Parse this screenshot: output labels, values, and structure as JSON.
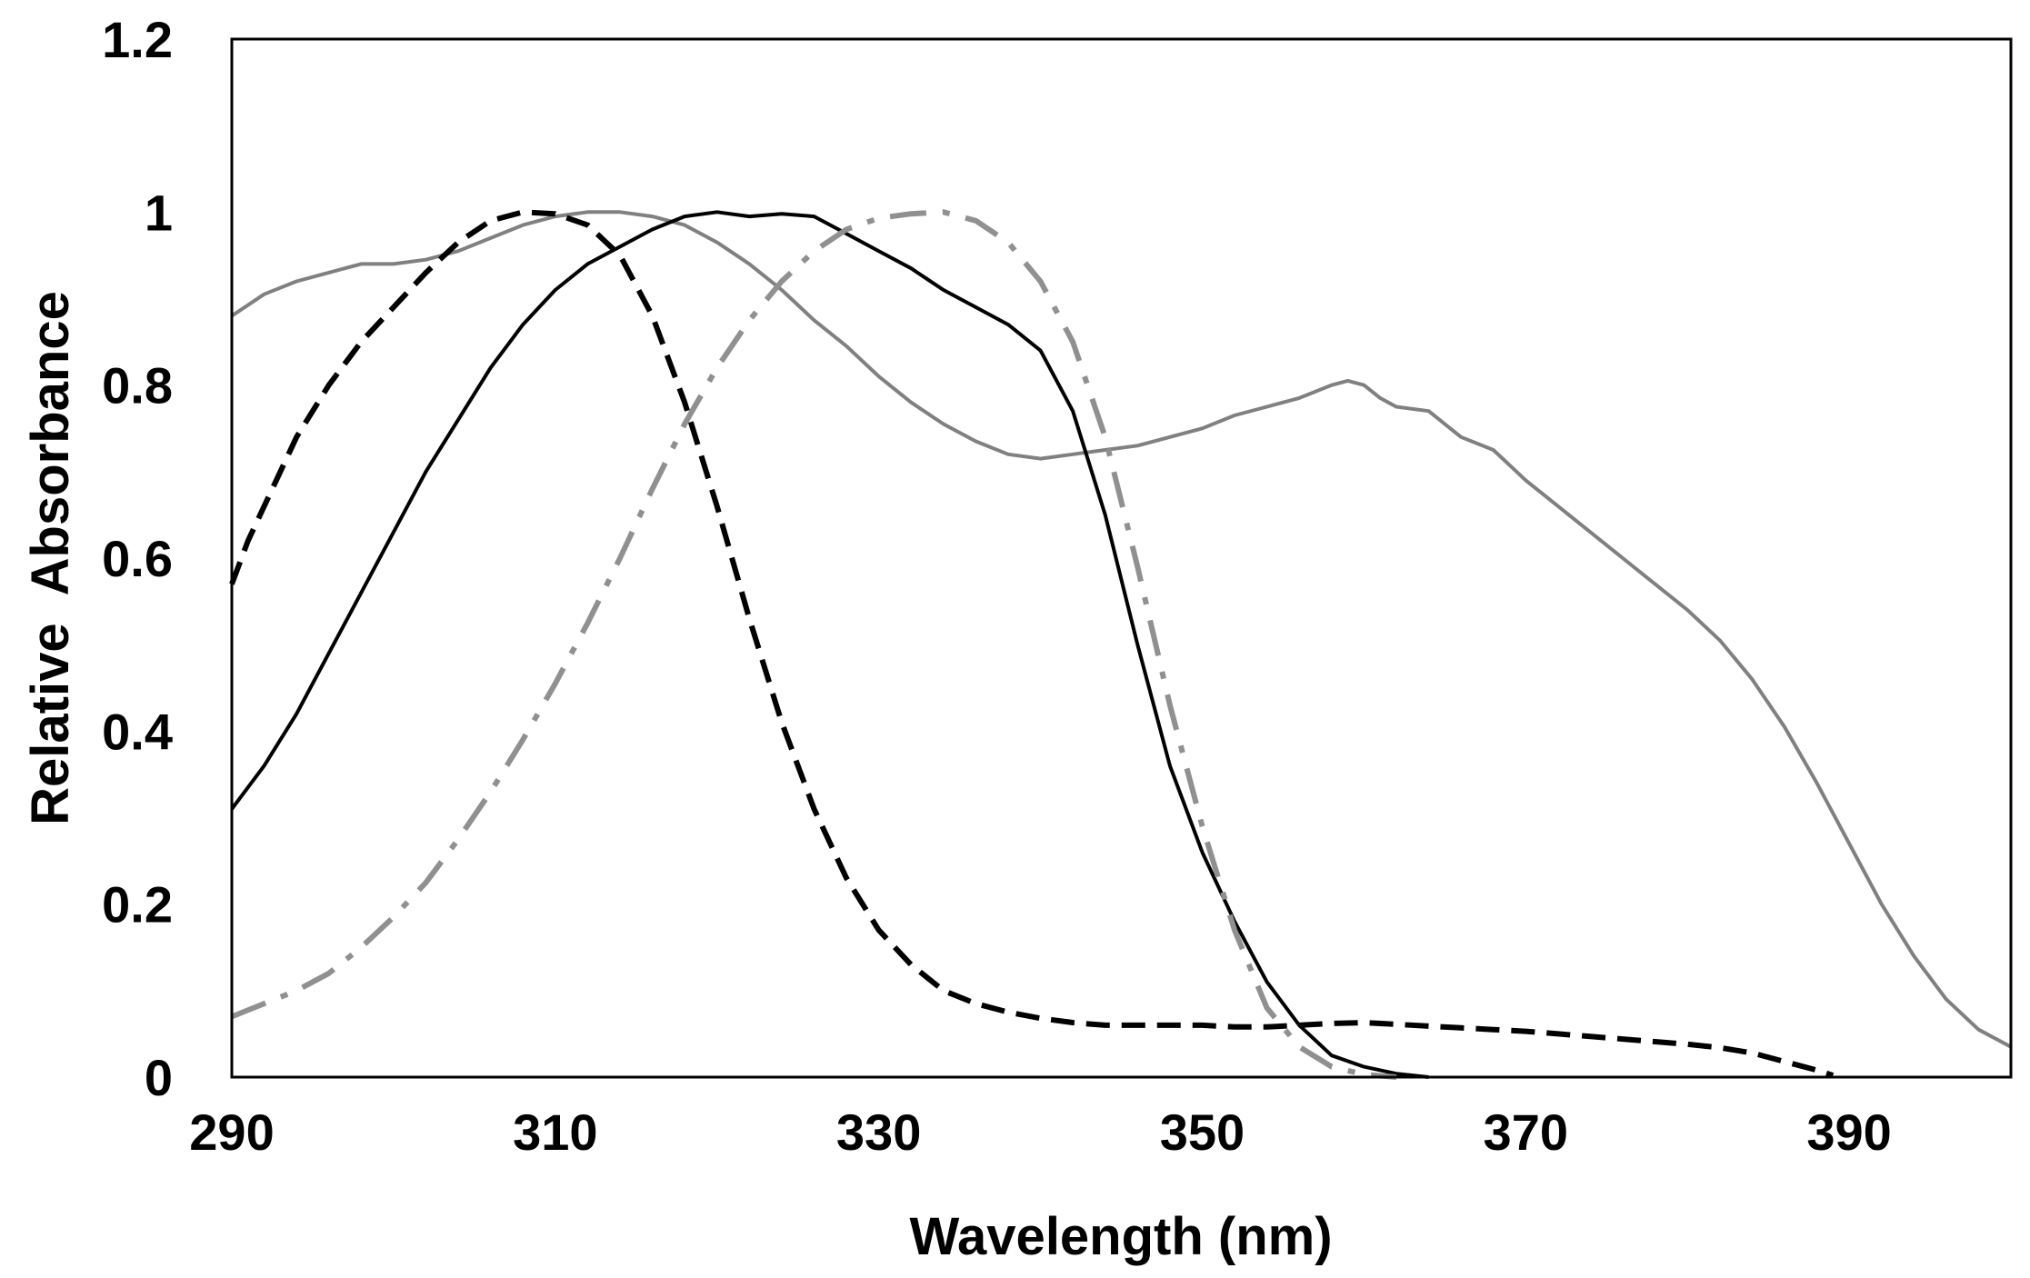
{
  "chart_data": {
    "type": "line",
    "title": "",
    "xlabel": "Wavelength (nm)",
    "ylabel": "Relative  Absorbance",
    "xlim": [
      290,
      400
    ],
    "ylim": [
      0,
      1.2
    ],
    "x_ticks": [
      {
        "value": 290,
        "label": "290"
      },
      {
        "value": 310,
        "label": "310"
      },
      {
        "value": 330,
        "label": "330"
      },
      {
        "value": 350,
        "label": "350"
      },
      {
        "value": 370,
        "label": "370"
      },
      {
        "value": 390,
        "label": "390"
      }
    ],
    "y_ticks": [
      {
        "value": 0,
        "label": "0"
      },
      {
        "value": 0.2,
        "label": "0.2"
      },
      {
        "value": 0.4,
        "label": "0.4"
      },
      {
        "value": 0.6,
        "label": "0.6"
      },
      {
        "value": 0.8,
        "label": "0.8"
      },
      {
        "value": 1.0,
        "label": "1"
      },
      {
        "value": 1.2,
        "label": "1.2"
      }
    ],
    "grid": false,
    "legend": "none",
    "series": [
      {
        "name": "gray-solid",
        "color": "#808080",
        "style": "solid",
        "x": [
          290,
          292,
          294,
          296,
          298,
          300,
          302,
          304,
          306,
          308,
          310,
          312,
          314,
          316,
          318,
          320,
          322,
          324,
          326,
          328,
          330,
          332,
          334,
          336,
          338,
          340,
          342,
          344,
          346,
          348,
          350,
          352,
          354,
          356,
          358,
          359,
          360,
          361,
          362,
          364,
          366,
          368,
          370,
          372,
          374,
          376,
          378,
          380,
          382,
          384,
          386,
          388,
          390,
          392,
          394,
          396,
          398,
          400
        ],
        "y": [
          0.88,
          0.905,
          0.92,
          0.93,
          0.94,
          0.94,
          0.945,
          0.955,
          0.97,
          0.985,
          0.995,
          1.0,
          1.0,
          0.995,
          0.985,
          0.965,
          0.94,
          0.91,
          0.875,
          0.845,
          0.81,
          0.78,
          0.755,
          0.735,
          0.72,
          0.715,
          0.72,
          0.725,
          0.73,
          0.74,
          0.75,
          0.765,
          0.775,
          0.785,
          0.8,
          0.805,
          0.8,
          0.785,
          0.775,
          0.77,
          0.74,
          0.725,
          0.69,
          0.66,
          0.63,
          0.6,
          0.57,
          0.54,
          0.505,
          0.46,
          0.405,
          0.34,
          0.27,
          0.2,
          0.14,
          0.09,
          0.055,
          0.035
        ]
      },
      {
        "name": "black-dashed",
        "color": "#000000",
        "style": "dashed",
        "x": [
          290,
          291,
          292,
          294,
          296,
          298,
          300,
          302,
          304,
          306,
          308,
          310,
          312,
          314,
          316,
          318,
          320,
          322,
          324,
          326,
          328,
          330,
          332,
          334,
          336,
          338,
          340,
          342,
          344,
          346,
          348,
          350,
          352,
          354,
          356,
          358,
          360,
          362,
          364,
          366,
          368,
          370,
          372,
          374,
          376,
          378,
          380,
          382,
          384,
          386,
          388,
          389
        ],
        "y": [
          0.57,
          0.62,
          0.66,
          0.74,
          0.8,
          0.85,
          0.89,
          0.93,
          0.965,
          0.99,
          1.0,
          0.998,
          0.985,
          0.95,
          0.88,
          0.78,
          0.66,
          0.53,
          0.41,
          0.31,
          0.23,
          0.17,
          0.13,
          0.1,
          0.085,
          0.075,
          0.068,
          0.063,
          0.06,
          0.06,
          0.06,
          0.06,
          0.058,
          0.058,
          0.06,
          0.062,
          0.063,
          0.061,
          0.059,
          0.057,
          0.055,
          0.053,
          0.05,
          0.047,
          0.044,
          0.041,
          0.038,
          0.034,
          0.028,
          0.018,
          0.008,
          0.002
        ]
      },
      {
        "name": "black-solid",
        "color": "#000000",
        "style": "solid",
        "x": [
          290,
          292,
          294,
          296,
          298,
          300,
          302,
          304,
          306,
          308,
          310,
          312,
          314,
          316,
          318,
          320,
          322,
          324,
          326,
          328,
          330,
          332,
          334,
          336,
          338,
          340,
          342,
          344,
          346,
          348,
          350,
          352,
          354,
          356,
          358,
          360,
          362,
          364
        ],
        "y": [
          0.31,
          0.36,
          0.42,
          0.49,
          0.56,
          0.63,
          0.7,
          0.76,
          0.82,
          0.87,
          0.91,
          0.94,
          0.96,
          0.98,
          0.995,
          1.0,
          0.995,
          0.998,
          0.995,
          0.975,
          0.955,
          0.935,
          0.91,
          0.89,
          0.87,
          0.84,
          0.77,
          0.65,
          0.5,
          0.36,
          0.26,
          0.18,
          0.11,
          0.06,
          0.025,
          0.012,
          0.004,
          0.0
        ]
      },
      {
        "name": "gray-dash-dot",
        "color": "#909090",
        "style": "dash-dot",
        "x": [
          290,
          292,
          294,
          296,
          298,
          300,
          302,
          304,
          306,
          308,
          310,
          312,
          314,
          316,
          318,
          320,
          322,
          324,
          326,
          328,
          330,
          332,
          334,
          336,
          338,
          340,
          342,
          344,
          346,
          348,
          350,
          352,
          354,
          356,
          358,
          360,
          362
        ],
        "y": [
          0.07,
          0.085,
          0.1,
          0.12,
          0.15,
          0.185,
          0.225,
          0.275,
          0.33,
          0.39,
          0.455,
          0.525,
          0.6,
          0.68,
          0.755,
          0.82,
          0.875,
          0.92,
          0.955,
          0.98,
          0.993,
          0.998,
          1.0,
          0.99,
          0.965,
          0.92,
          0.85,
          0.74,
          0.59,
          0.43,
          0.29,
          0.17,
          0.08,
          0.035,
          0.012,
          0.003,
          0.0
        ]
      }
    ]
  }
}
